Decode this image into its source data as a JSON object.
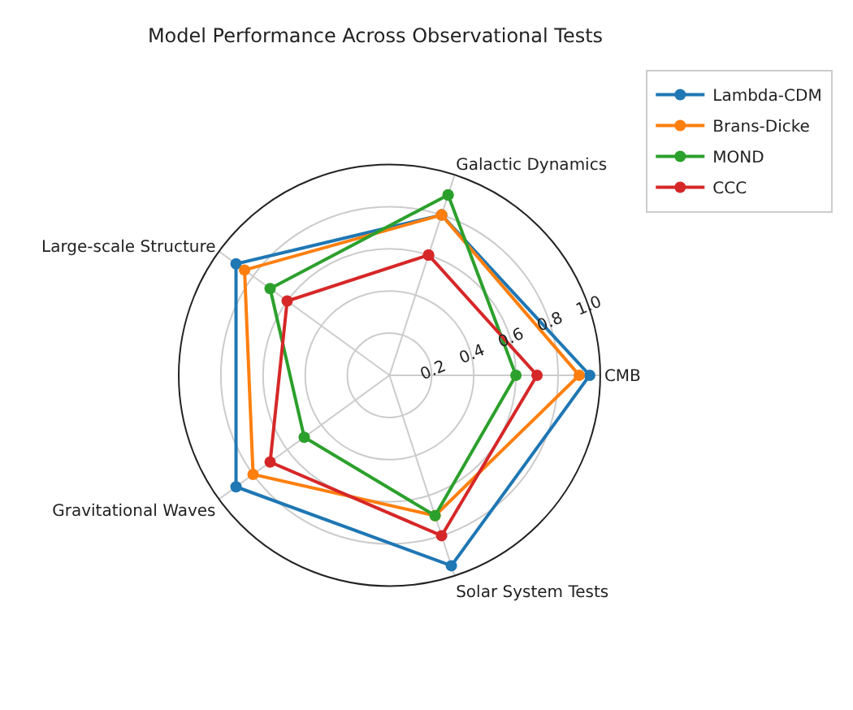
{
  "chart_data": {
    "type": "radar",
    "title": "Model Performance Across Observational Tests",
    "categories": [
      "Galactic Dynamics",
      "CMB",
      "Solar System Tests",
      "Gravitational Waves",
      "Large-scale Structure"
    ],
    "series": [
      {
        "name": "Lambda-CDM",
        "color": "#1f77b4",
        "values": [
          0.8,
          0.95,
          0.95,
          0.9,
          0.9
        ]
      },
      {
        "name": "Brans-Dicke",
        "color": "#ff7f0e",
        "values": [
          0.8,
          0.9,
          0.7,
          0.8,
          0.85
        ]
      },
      {
        "name": "MOND",
        "color": "#2ca02c",
        "values": [
          0.9,
          0.6,
          0.7,
          0.5,
          0.7
        ]
      },
      {
        "name": "CCC",
        "color": "#d62728",
        "values": [
          0.6,
          0.7,
          0.8,
          0.7,
          0.6
        ]
      }
    ],
    "ylim": [
      0,
      1
    ],
    "yticks": [
      0.2,
      0.4,
      0.6,
      0.8,
      {
        "value": 1,
        "label": "1.0"
      }
    ],
    "grid": true,
    "legend": "top right",
    "marker": "circle",
    "line_style": "solid"
  }
}
